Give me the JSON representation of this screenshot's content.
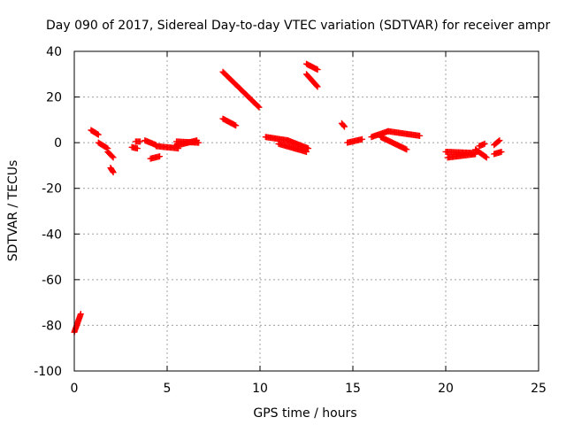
{
  "chart_data": {
    "type": "scatter",
    "title": "Day 090 of 2017, Sidereal Day-to-day VTEC variation (SDTVAR) for receiver ampr",
    "xlabel": "GPS time / hours",
    "ylabel": "SDTVAR / TECUs",
    "xlim": [
      0,
      25
    ],
    "ylim": [
      -100,
      40
    ],
    "xticks": [
      0,
      5,
      10,
      15,
      20,
      25
    ],
    "yticks": [
      -100,
      -80,
      -60,
      -40,
      -20,
      0,
      20,
      40
    ],
    "grid": true,
    "marker": "+",
    "color": "#ff0000",
    "segments": [
      {
        "x": [
          0.0,
          0.35
        ],
        "y": [
          -83,
          -75
        ]
      },
      {
        "x": [
          0.9,
          1.3
        ],
        "y": [
          5.5,
          3.5
        ]
      },
      {
        "x": [
          1.3,
          1.8
        ],
        "y": [
          0.0,
          -2.5
        ]
      },
      {
        "x": [
          1.8,
          2.1
        ],
        "y": [
          -4.0,
          -6.5
        ]
      },
      {
        "x": [
          1.95,
          2.1
        ],
        "y": [
          -11.0,
          -13.0
        ]
      },
      {
        "x": [
          3.1,
          3.4
        ],
        "y": [
          -2.0,
          -2.5
        ]
      },
      {
        "x": [
          3.3,
          3.55
        ],
        "y": [
          0.5,
          0.5
        ]
      },
      {
        "x": [
          3.8,
          4.4
        ],
        "y": [
          1.0,
          -1.0
        ]
      },
      {
        "x": [
          4.1,
          4.6
        ],
        "y": [
          -7.0,
          -6.0
        ]
      },
      {
        "x": [
          4.4,
          5.6
        ],
        "y": [
          -1.5,
          -2.5
        ]
      },
      {
        "x": [
          5.4,
          6.6
        ],
        "y": [
          -1.5,
          1.0
        ]
      },
      {
        "x": [
          5.5,
          6.7
        ],
        "y": [
          0.5,
          0.0
        ]
      },
      {
        "x": [
          8.0,
          9.95
        ],
        "y": [
          31.0,
          15.5
        ]
      },
      {
        "x": [
          8.0,
          8.7
        ],
        "y": [
          10.5,
          7.5
        ]
      },
      {
        "x": [
          10.3,
          11.5
        ],
        "y": [
          2.5,
          1.0
        ]
      },
      {
        "x": [
          11.0,
          12.5
        ],
        "y": [
          -0.5,
          -4.0
        ]
      },
      {
        "x": [
          11.5,
          12.6
        ],
        "y": [
          1.0,
          -2.5
        ]
      },
      {
        "x": [
          12.5,
          13.1
        ],
        "y": [
          34.5,
          32.0
        ]
      },
      {
        "x": [
          12.5,
          13.1
        ],
        "y": [
          30.0,
          24.5
        ]
      },
      {
        "x": [
          14.4,
          14.55
        ],
        "y": [
          8.5,
          7.0
        ]
      },
      {
        "x": [
          14.7,
          15.5
        ],
        "y": [
          0.0,
          1.5
        ]
      },
      {
        "x": [
          16.0,
          16.9
        ],
        "y": [
          2.5,
          5.0
        ]
      },
      {
        "x": [
          16.9,
          18.6
        ],
        "y": [
          5.0,
          3.0
        ]
      },
      {
        "x": [
          16.5,
          17.9
        ],
        "y": [
          2.5,
          -3.0
        ]
      },
      {
        "x": [
          20.0,
          21.5
        ],
        "y": [
          -4.0,
          -4.5
        ]
      },
      {
        "x": [
          20.1,
          21.6
        ],
        "y": [
          -6.5,
          -5.0
        ]
      },
      {
        "x": [
          21.6,
          22.2
        ],
        "y": [
          -3.0,
          -6.5
        ]
      },
      {
        "x": [
          21.8,
          22.1
        ],
        "y": [
          -1.5,
          -0.5
        ]
      },
      {
        "x": [
          22.6,
          23.0
        ],
        "y": [
          -5.0,
          -4.0
        ]
      },
      {
        "x": [
          22.6,
          22.9
        ],
        "y": [
          -1.0,
          1.0
        ]
      }
    ]
  }
}
